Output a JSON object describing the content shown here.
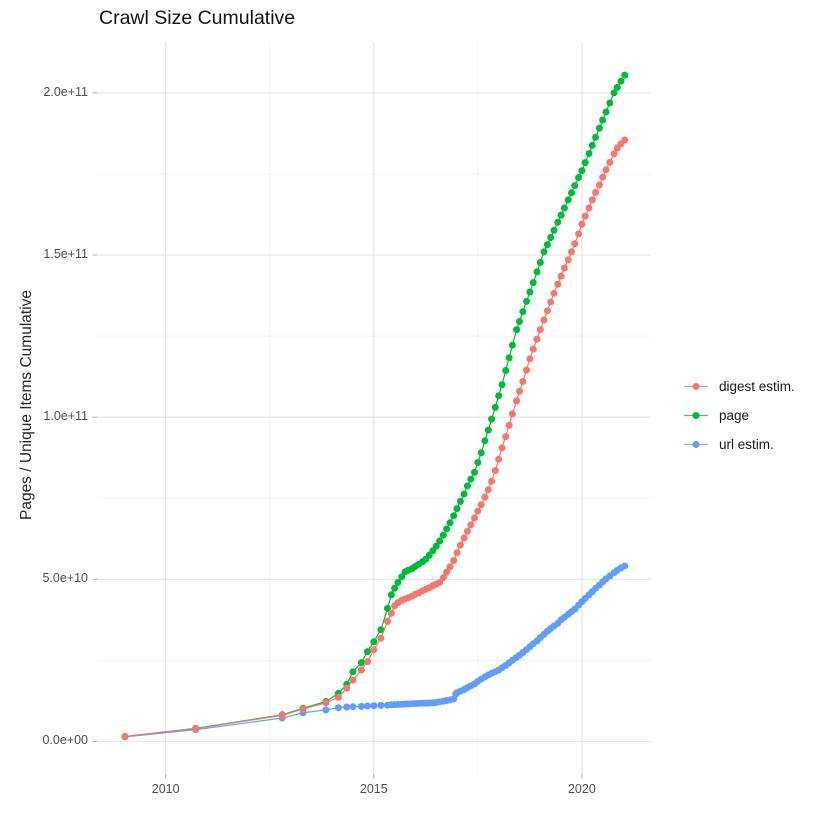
{
  "chart_data": {
    "type": "scatter-line",
    "title": "Crawl Size Cumulative",
    "xlabel": "",
    "ylabel": "Pages / Unique Items Cumulative",
    "value_unit": "1e9",
    "xlim": [
      2008.35,
      2021.66
    ],
    "ylim": [
      -10.06,
      215.7
    ],
    "grid": true,
    "legend_position": "right",
    "x_ticks": [
      {
        "value": 2010,
        "label": "2010"
      },
      {
        "value": 2015,
        "label": "2015"
      },
      {
        "value": 2020,
        "label": "2020"
      }
    ],
    "y_ticks": [
      {
        "value": 0,
        "label": "0.0e+00"
      },
      {
        "value": 50,
        "label": "5.0e+10"
      },
      {
        "value": 100,
        "label": "1.0e+11"
      },
      {
        "value": 150,
        "label": "1.5e+11"
      },
      {
        "value": 200,
        "label": "2.0e+11"
      }
    ],
    "x_minor": [
      2012.5,
      2017.5
    ],
    "y_minor": [
      25,
      75,
      125,
      175
    ],
    "series": [
      {
        "name": "digest estim.",
        "color": "#F8766D",
        "points": [
          [
            2009.02,
            1.5
          ],
          [
            2010.72,
            3.9
          ],
          [
            2012.8,
            8.0
          ],
          [
            2013.3,
            10.0
          ],
          [
            2013.85,
            11.9
          ],
          [
            2014.15,
            13.6
          ],
          [
            2014.35,
            16.4
          ],
          [
            2014.5,
            18.9
          ],
          [
            2014.7,
            22.0
          ],
          [
            2014.85,
            24.6
          ],
          [
            2015.0,
            28.2
          ],
          [
            2015.17,
            31.8
          ],
          [
            2015.33,
            37.0
          ],
          [
            2015.42,
            39.5
          ],
          [
            2015.5,
            41.8
          ],
          [
            2015.58,
            42.8
          ],
          [
            2015.67,
            43.5
          ],
          [
            2015.75,
            43.9
          ],
          [
            2015.83,
            44.3
          ],
          [
            2015.92,
            44.8
          ],
          [
            2016.0,
            45.4
          ],
          [
            2016.08,
            45.8
          ],
          [
            2016.17,
            46.4
          ],
          [
            2016.25,
            46.9
          ],
          [
            2016.33,
            47.4
          ],
          [
            2016.42,
            48.0
          ],
          [
            2016.5,
            48.5
          ],
          [
            2016.58,
            49.0
          ],
          [
            2016.67,
            50.5
          ],
          [
            2016.75,
            52.2
          ],
          [
            2016.83,
            53.8
          ],
          [
            2016.92,
            55.8
          ],
          [
            2017.0,
            58.2
          ],
          [
            2017.08,
            60.5
          ],
          [
            2017.17,
            62.7
          ],
          [
            2017.25,
            64.8
          ],
          [
            2017.33,
            66.8
          ],
          [
            2017.42,
            68.9
          ],
          [
            2017.5,
            71.0
          ],
          [
            2017.58,
            73.0
          ],
          [
            2017.67,
            75.3
          ],
          [
            2017.75,
            77.6
          ],
          [
            2017.83,
            80.2
          ],
          [
            2017.92,
            83.5
          ],
          [
            2018.0,
            87.0
          ],
          [
            2018.08,
            90.5
          ],
          [
            2018.17,
            94.0
          ],
          [
            2018.25,
            97.5
          ],
          [
            2018.33,
            101.0
          ],
          [
            2018.43,
            105.0
          ],
          [
            2018.5,
            108.0
          ],
          [
            2018.58,
            111.0
          ],
          [
            2018.67,
            114.5
          ],
          [
            2018.75,
            118.0
          ],
          [
            2018.83,
            121.0
          ],
          [
            2018.92,
            124.0
          ],
          [
            2019.0,
            127.0
          ],
          [
            2019.09,
            130.0
          ],
          [
            2019.17,
            132.8
          ],
          [
            2019.25,
            135.5
          ],
          [
            2019.33,
            138.2
          ],
          [
            2019.42,
            141.0
          ],
          [
            2019.5,
            143.5
          ],
          [
            2019.58,
            146.0
          ],
          [
            2019.67,
            148.5
          ],
          [
            2019.75,
            151.0
          ],
          [
            2019.83,
            153.5
          ],
          [
            2019.92,
            156.5
          ],
          [
            2020.0,
            159.5
          ],
          [
            2020.08,
            162.0
          ],
          [
            2020.17,
            164.5
          ],
          [
            2020.25,
            167.0
          ],
          [
            2020.33,
            169.3
          ],
          [
            2020.42,
            171.6
          ],
          [
            2020.5,
            174.0
          ],
          [
            2020.58,
            176.3
          ],
          [
            2020.67,
            178.6
          ],
          [
            2020.77,
            181.2
          ],
          [
            2020.85,
            183.0
          ],
          [
            2020.94,
            184.3
          ],
          [
            2021.03,
            185.5
          ]
        ]
      },
      {
        "name": "page",
        "color": "#00BA38",
        "points": [
          [
            2009.02,
            1.5
          ],
          [
            2010.72,
            4.0
          ],
          [
            2012.8,
            8.2
          ],
          [
            2013.3,
            10.2
          ],
          [
            2013.85,
            12.3
          ],
          [
            2014.15,
            14.8
          ],
          [
            2014.35,
            17.6
          ],
          [
            2014.5,
            21.5
          ],
          [
            2014.7,
            24.3
          ],
          [
            2014.85,
            27.7
          ],
          [
            2015.0,
            30.7
          ],
          [
            2015.17,
            34.4
          ],
          [
            2015.33,
            41.0
          ],
          [
            2015.42,
            45.2
          ],
          [
            2015.5,
            47.2
          ],
          [
            2015.58,
            49.0
          ],
          [
            2015.67,
            50.8
          ],
          [
            2015.75,
            52.3
          ],
          [
            2015.83,
            52.8
          ],
          [
            2015.92,
            53.3
          ],
          [
            2016.0,
            54.0
          ],
          [
            2016.08,
            54.6
          ],
          [
            2016.17,
            55.4
          ],
          [
            2016.25,
            56.2
          ],
          [
            2016.33,
            57.4
          ],
          [
            2016.42,
            58.8
          ],
          [
            2016.5,
            60.2
          ],
          [
            2016.58,
            61.8
          ],
          [
            2016.67,
            63.6
          ],
          [
            2016.75,
            65.5
          ],
          [
            2016.83,
            67.4
          ],
          [
            2016.92,
            69.6
          ],
          [
            2017.0,
            71.8
          ],
          [
            2017.08,
            74.0
          ],
          [
            2017.17,
            76.3
          ],
          [
            2017.25,
            78.8
          ],
          [
            2017.33,
            80.9
          ],
          [
            2017.42,
            83.0
          ],
          [
            2017.5,
            86.0
          ],
          [
            2017.58,
            89.0
          ],
          [
            2017.67,
            92.7
          ],
          [
            2017.75,
            96.0
          ],
          [
            2017.83,
            99.4
          ],
          [
            2017.92,
            103.0
          ],
          [
            2018.0,
            106.6
          ],
          [
            2018.08,
            110.0
          ],
          [
            2018.17,
            114.4
          ],
          [
            2018.25,
            118.3
          ],
          [
            2018.33,
            122.2
          ],
          [
            2018.43,
            127.0
          ],
          [
            2018.5,
            129.5
          ],
          [
            2018.58,
            132.5
          ],
          [
            2018.67,
            135.7
          ],
          [
            2018.75,
            138.6
          ],
          [
            2018.83,
            141.5
          ],
          [
            2018.92,
            144.8
          ],
          [
            2019.0,
            147.7
          ],
          [
            2019.09,
            151.0
          ],
          [
            2019.17,
            153.2
          ],
          [
            2019.25,
            155.4
          ],
          [
            2019.33,
            157.6
          ],
          [
            2019.42,
            160.1
          ],
          [
            2019.5,
            162.3
          ],
          [
            2019.58,
            164.5
          ],
          [
            2019.67,
            167.0
          ],
          [
            2019.75,
            169.2
          ],
          [
            2019.83,
            171.4
          ],
          [
            2019.92,
            173.9
          ],
          [
            2020.0,
            176.0
          ],
          [
            2020.08,
            178.5
          ],
          [
            2020.17,
            181.3
          ],
          [
            2020.25,
            183.8
          ],
          [
            2020.33,
            186.3
          ],
          [
            2020.42,
            189.1
          ],
          [
            2020.5,
            191.6
          ],
          [
            2020.58,
            194.1
          ],
          [
            2020.67,
            196.9
          ],
          [
            2020.77,
            200.0
          ],
          [
            2020.85,
            201.7
          ],
          [
            2020.94,
            203.6
          ],
          [
            2021.03,
            205.5
          ]
        ]
      },
      {
        "name": "url estim.",
        "color": "#619CFF",
        "points": [
          [
            2009.02,
            1.4
          ],
          [
            2010.72,
            3.6
          ],
          [
            2012.8,
            7.2
          ],
          [
            2013.3,
            8.8
          ],
          [
            2013.85,
            9.7
          ],
          [
            2014.15,
            10.4
          ],
          [
            2014.35,
            10.6
          ],
          [
            2014.5,
            10.7
          ],
          [
            2014.7,
            10.8
          ],
          [
            2014.85,
            10.9
          ],
          [
            2015.0,
            11.0
          ],
          [
            2015.17,
            11.1
          ],
          [
            2015.33,
            11.2
          ],
          [
            2015.42,
            11.3
          ],
          [
            2015.5,
            11.35
          ],
          [
            2015.58,
            11.4
          ],
          [
            2015.67,
            11.45
          ],
          [
            2015.75,
            11.5
          ],
          [
            2015.83,
            11.55
          ],
          [
            2015.92,
            11.6
          ],
          [
            2016.0,
            11.65
          ],
          [
            2016.08,
            11.7
          ],
          [
            2016.17,
            11.75
          ],
          [
            2016.25,
            11.8
          ],
          [
            2016.33,
            11.85
          ],
          [
            2016.42,
            11.9
          ],
          [
            2016.5,
            12.0
          ],
          [
            2016.58,
            12.2
          ],
          [
            2016.67,
            12.4
          ],
          [
            2016.75,
            12.6
          ],
          [
            2016.83,
            12.8
          ],
          [
            2016.92,
            13.1
          ],
          [
            2016.97,
            14.6
          ],
          [
            2017.0,
            15.0
          ],
          [
            2017.08,
            15.5
          ],
          [
            2017.17,
            16.0
          ],
          [
            2017.25,
            16.6
          ],
          [
            2017.33,
            17.1
          ],
          [
            2017.42,
            17.7
          ],
          [
            2017.5,
            18.5
          ],
          [
            2017.58,
            19.2
          ],
          [
            2017.67,
            19.9
          ],
          [
            2017.75,
            20.5
          ],
          [
            2017.83,
            21.0
          ],
          [
            2017.92,
            21.5
          ],
          [
            2018.0,
            22.0
          ],
          [
            2018.08,
            22.7
          ],
          [
            2018.17,
            23.4
          ],
          [
            2018.25,
            24.2
          ],
          [
            2018.33,
            25.0
          ],
          [
            2018.42,
            25.8
          ],
          [
            2018.5,
            26.6
          ],
          [
            2018.58,
            27.4
          ],
          [
            2018.67,
            28.3
          ],
          [
            2018.75,
            29.2
          ],
          [
            2018.83,
            30.1
          ],
          [
            2018.92,
            31.0
          ],
          [
            2019.0,
            32.0
          ],
          [
            2019.09,
            33.0
          ],
          [
            2019.17,
            34.0
          ],
          [
            2019.25,
            34.8
          ],
          [
            2019.33,
            35.6
          ],
          [
            2019.42,
            36.4
          ],
          [
            2019.5,
            37.5
          ],
          [
            2019.58,
            38.3
          ],
          [
            2019.67,
            39.2
          ],
          [
            2019.75,
            40.0
          ],
          [
            2019.83,
            40.8
          ],
          [
            2019.92,
            42.0
          ],
          [
            2020.0,
            43.1
          ],
          [
            2020.08,
            44.1
          ],
          [
            2020.17,
            45.2
          ],
          [
            2020.25,
            46.2
          ],
          [
            2020.33,
            47.2
          ],
          [
            2020.42,
            48.2
          ],
          [
            2020.5,
            49.2
          ],
          [
            2020.58,
            50.1
          ],
          [
            2020.67,
            51.0
          ],
          [
            2020.77,
            52.0
          ],
          [
            2020.85,
            52.8
          ],
          [
            2020.94,
            53.5
          ],
          [
            2021.03,
            54.1
          ]
        ]
      }
    ],
    "style": {
      "major_grid_color": "#E4E4E4",
      "minor_grid_color": "#F0F0F0",
      "tick_color": "#ADADAD",
      "point_radius": 3.5
    }
  }
}
